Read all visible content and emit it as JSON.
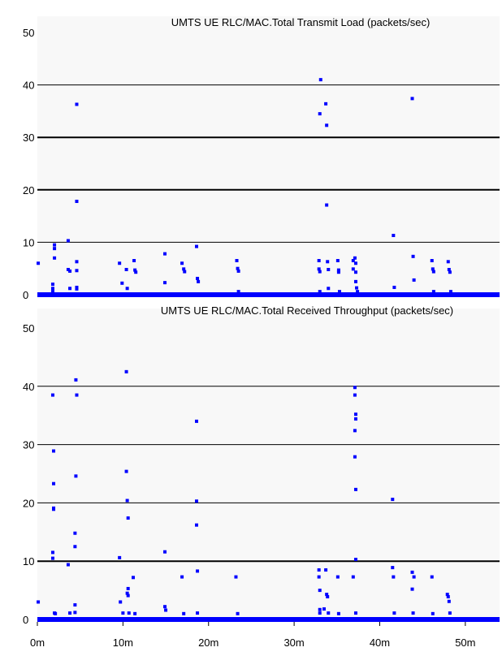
{
  "chart_data": [
    {
      "type": "scatter",
      "title": "UMTS UE RLC/MAC.Total Transmit Load (packets/sec)",
      "xlabel": "",
      "ylabel": "",
      "ylim": [
        0,
        50
      ],
      "yticks": [
        "0",
        "10",
        "20",
        "30",
        "40",
        "50"
      ],
      "bold_gridlines": [
        30,
        20
      ],
      "grid": true,
      "color": "#0000ff",
      "points": [
        [
          0.1,
          6
        ],
        [
          1.8,
          2
        ],
        [
          1.8,
          1.2
        ],
        [
          1.8,
          0.6
        ],
        [
          2.0,
          9.5
        ],
        [
          2.0,
          8.8
        ],
        [
          2.0,
          7
        ],
        [
          3.6,
          10.3
        ],
        [
          3.6,
          4.8
        ],
        [
          3.8,
          4.5
        ],
        [
          3.8,
          1.2
        ],
        [
          4.6,
          36.3
        ],
        [
          4.6,
          17.8
        ],
        [
          4.6,
          6.3
        ],
        [
          4.6,
          4.6
        ],
        [
          4.6,
          1.4
        ],
        [
          4.6,
          1.1
        ],
        [
          9.6,
          6
        ],
        [
          9.9,
          2.2
        ],
        [
          10.4,
          4.8
        ],
        [
          10.5,
          1.2
        ],
        [
          11.3,
          6.5
        ],
        [
          11.4,
          4.7
        ],
        [
          11.5,
          4.3
        ],
        [
          14.9,
          7.8
        ],
        [
          14.9,
          2.3
        ],
        [
          16.9,
          6
        ],
        [
          17.1,
          4.9
        ],
        [
          17.2,
          4.4
        ],
        [
          18.6,
          9.2
        ],
        [
          18.7,
          3.1
        ],
        [
          18.8,
          2.5
        ],
        [
          23.3,
          6.5
        ],
        [
          23.4,
          5
        ],
        [
          23.5,
          4.5
        ],
        [
          23.5,
          0.6
        ],
        [
          32.9,
          6.5
        ],
        [
          32.9,
          4.9
        ],
        [
          33.0,
          4.4
        ],
        [
          33.0,
          0.6
        ],
        [
          33.1,
          41
        ],
        [
          33.0,
          34.5
        ],
        [
          33.7,
          36.4
        ],
        [
          33.8,
          32.3
        ],
        [
          33.8,
          17.1
        ],
        [
          33.9,
          6.3
        ],
        [
          34.0,
          4.8
        ],
        [
          34.0,
          1.2
        ],
        [
          35.1,
          6.5
        ],
        [
          35.2,
          4.7
        ],
        [
          35.2,
          4.3
        ],
        [
          35.3,
          0.6
        ],
        [
          36.9,
          6.5
        ],
        [
          36.9,
          4.9
        ],
        [
          37.1,
          7
        ],
        [
          37.2,
          6
        ],
        [
          37.2,
          4.3
        ],
        [
          37.2,
          2.5
        ],
        [
          37.3,
          1.3
        ],
        [
          37.4,
          0.6
        ],
        [
          41.6,
          11.3
        ],
        [
          41.7,
          1.4
        ],
        [
          43.8,
          37.4
        ],
        [
          43.9,
          7.3
        ],
        [
          44.0,
          2.8
        ],
        [
          46.1,
          6.5
        ],
        [
          46.2,
          4.9
        ],
        [
          46.3,
          4.4
        ],
        [
          46.3,
          0.6
        ],
        [
          48.0,
          6.3
        ],
        [
          48.1,
          4.8
        ],
        [
          48.2,
          4.3
        ],
        [
          48.3,
          0.6
        ]
      ]
    },
    {
      "type": "scatter",
      "title": "UMTS UE RLC/MAC.Total Received Throughput (packets/sec)",
      "xlabel": "",
      "ylabel": "",
      "ylim": [
        0,
        50
      ],
      "xlim": [
        0,
        54
      ],
      "yticks": [
        "0",
        "10",
        "20",
        "30",
        "40",
        "50"
      ],
      "xticks": [
        "0m",
        "10m",
        "20m",
        "30m",
        "40m",
        "50m"
      ],
      "bold_gridlines": [
        10
      ],
      "grid": true,
      "color": "#0000ff",
      "points": [
        [
          0.1,
          3
        ],
        [
          1.8,
          38.5
        ],
        [
          1.9,
          28.9
        ],
        [
          1.9,
          23.3
        ],
        [
          1.9,
          19.1
        ],
        [
          1.9,
          18.9
        ],
        [
          1.8,
          11.5
        ],
        [
          1.8,
          10.5
        ],
        [
          2.0,
          1.1
        ],
        [
          2.1,
          1
        ],
        [
          3.6,
          9.4
        ],
        [
          3.8,
          1.1
        ],
        [
          4.5,
          41.1
        ],
        [
          4.6,
          38.5
        ],
        [
          4.5,
          24.6
        ],
        [
          4.4,
          14.8
        ],
        [
          4.4,
          12.5
        ],
        [
          4.4,
          2.5
        ],
        [
          4.4,
          1.2
        ],
        [
          9.6,
          10.6
        ],
        [
          9.7,
          3
        ],
        [
          10.0,
          1.1
        ],
        [
          10.4,
          42.5
        ],
        [
          10.4,
          25.4
        ],
        [
          10.5,
          20.4
        ],
        [
          10.6,
          17.4
        ],
        [
          10.6,
          5.3
        ],
        [
          10.5,
          4.5
        ],
        [
          10.6,
          4.1
        ],
        [
          10.7,
          1.1
        ],
        [
          11.2,
          7.2
        ],
        [
          11.4,
          1
        ],
        [
          14.9,
          11.6
        ],
        [
          14.9,
          2.2
        ],
        [
          15.0,
          1.6
        ],
        [
          16.9,
          7.3
        ],
        [
          17.1,
          1
        ],
        [
          18.6,
          34
        ],
        [
          18.6,
          20.3
        ],
        [
          18.6,
          16.2
        ],
        [
          18.7,
          8.3
        ],
        [
          18.7,
          1.1
        ],
        [
          23.2,
          7.3
        ],
        [
          23.4,
          1
        ],
        [
          32.9,
          8.5
        ],
        [
          32.9,
          7.3
        ],
        [
          33.0,
          5
        ],
        [
          33.0,
          1.1
        ],
        [
          33.0,
          1.7
        ],
        [
          33.5,
          1.8
        ],
        [
          33.7,
          8.5
        ],
        [
          33.8,
          4.3
        ],
        [
          33.9,
          3.9
        ],
        [
          34.0,
          1.1
        ],
        [
          35.1,
          7.3
        ],
        [
          35.2,
          1
        ],
        [
          36.9,
          7.3
        ],
        [
          37.1,
          39.8
        ],
        [
          37.1,
          38.5
        ],
        [
          37.2,
          35.2
        ],
        [
          37.2,
          34.4
        ],
        [
          37.1,
          32.4
        ],
        [
          37.1,
          27.9
        ],
        [
          37.2,
          22.3
        ],
        [
          37.2,
          10.3
        ],
        [
          37.2,
          1.1
        ],
        [
          41.5,
          20.6
        ],
        [
          41.5,
          8.9
        ],
        [
          41.6,
          7.3
        ],
        [
          41.7,
          1.1
        ],
        [
          43.8,
          8.1
        ],
        [
          43.8,
          5.2
        ],
        [
          44.0,
          7.3
        ],
        [
          43.9,
          1.1
        ],
        [
          46.1,
          7.3
        ],
        [
          46.2,
          1
        ],
        [
          47.9,
          4.3
        ],
        [
          48.0,
          3.9
        ],
        [
          48.1,
          3.1
        ],
        [
          48.2,
          1.1
        ]
      ]
    }
  ]
}
